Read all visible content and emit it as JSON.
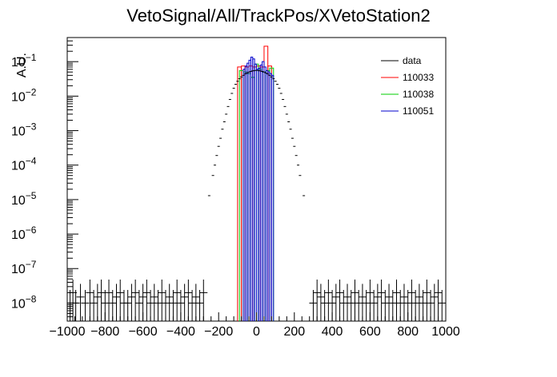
{
  "chart_data": {
    "type": "histogram",
    "title": "VetoSignal/All/TrackPos/XVetoStation2",
    "xlabel": "",
    "ylabel": "A.U.",
    "xlim": [
      -1000,
      1000
    ],
    "ylim": [
      3e-09,
      0.5
    ],
    "yscale": "log",
    "x_tick_labels": [
      "−1000",
      "−800",
      "−600",
      "−400",
      "−200",
      "0",
      "200",
      "400",
      "600",
      "800",
      "1000"
    ],
    "x_ticks": [
      -1000,
      -800,
      -600,
      -400,
      -200,
      0,
      200,
      400,
      600,
      800,
      1000
    ],
    "y_ticks": [
      1e-08,
      1e-07,
      1e-06,
      1e-05,
      0.0001,
      0.001,
      0.01,
      0.1
    ],
    "y_tick_labels": [
      {
        "base": "10",
        "exp": "−8"
      },
      {
        "base": "10",
        "exp": "−7"
      },
      {
        "base": "10",
        "exp": "−6"
      },
      {
        "base": "10",
        "exp": "−5"
      },
      {
        "base": "10",
        "exp": "−4"
      },
      {
        "base": "10",
        "exp": "−3"
      },
      {
        "base": "10",
        "exp": "−2"
      },
      {
        "base": "10",
        "exp": "−1"
      }
    ],
    "legend_position": "top-right",
    "series": [
      {
        "name": "data",
        "style": "points",
        "color": "#000000",
        "x": [
          -250,
          -230,
          -220,
          -210,
          -200,
          -190,
          -180,
          -170,
          -160,
          -150,
          -140,
          -130,
          -120,
          -110,
          -100,
          -90,
          -80,
          -70,
          -60,
          -50,
          -40,
          -30,
          -20,
          -10,
          0,
          10,
          20,
          30,
          40,
          50,
          60,
          70,
          80,
          90,
          100,
          110,
          120,
          130,
          140,
          150,
          160,
          170,
          180,
          190,
          200,
          210,
          220,
          230,
          250
        ],
        "y": [
          1.3e-05,
          5e-05,
          0.0001,
          0.00019,
          0.00035,
          0.0006,
          0.0011,
          0.0018,
          0.003,
          0.005,
          0.008,
          0.012,
          0.017,
          0.022,
          0.027,
          0.032,
          0.036,
          0.04,
          0.044,
          0.047,
          0.05,
          0.052,
          0.054,
          0.055,
          0.056,
          0.055,
          0.054,
          0.052,
          0.05,
          0.047,
          0.044,
          0.04,
          0.036,
          0.032,
          0.027,
          0.022,
          0.017,
          0.012,
          0.008,
          0.005,
          0.003,
          0.0018,
          0.0011,
          0.0006,
          0.00035,
          0.00019,
          0.0001,
          5e-05,
          1.3e-05
        ]
      },
      {
        "name": "110033",
        "style": "step",
        "color": "#ff0000",
        "edges": [
          -100,
          -80,
          -60,
          -40,
          -20,
          0,
          20,
          40,
          60,
          80
        ],
        "values": [
          0.07,
          0.075,
          0.07,
          0.075,
          0.07,
          0.075,
          0.07,
          0.28,
          0.075
        ]
      },
      {
        "name": "110038",
        "style": "step",
        "color": "#00cc00",
        "edges": [
          -90,
          -70,
          -50,
          -30,
          -10,
          10,
          30,
          50,
          70,
          90
        ],
        "values": [
          0.055,
          0.05,
          0.045,
          0.035,
          0.085,
          0.06,
          0.05,
          0.055,
          0.065
        ]
      },
      {
        "name": "110051",
        "style": "step",
        "color": "#0000cc",
        "edges": [
          -70,
          -60,
          -50,
          -40,
          -30,
          -20,
          -10,
          0,
          10,
          20,
          30,
          40,
          50,
          60,
          70,
          80,
          90
        ],
        "values": [
          0.06,
          0.075,
          0.09,
          0.11,
          0.135,
          0.12,
          0.085,
          0.06,
          0.065,
          0.08,
          0.1,
          0.07,
          0.055,
          0.05,
          0.045,
          0.04
        ]
      }
    ],
    "data_low_tail": {
      "x": [
        -985,
        -970,
        -955,
        -930,
        -905,
        -880,
        -860,
        -840,
        -820,
        -800,
        -780,
        -760,
        -740,
        -720,
        -700,
        -680,
        -660,
        -640,
        -620,
        -600,
        -580,
        -560,
        -540,
        -520,
        -500,
        -480,
        -460,
        -440,
        -420,
        -400,
        -380,
        -360,
        -340,
        -320,
        -300,
        -280,
        300,
        320,
        340,
        360,
        380,
        400,
        420,
        440,
        460,
        480,
        500,
        520,
        540,
        560,
        580,
        600,
        620,
        640,
        660,
        680,
        700,
        720,
        740,
        760,
        780,
        800,
        820,
        840,
        860,
        880,
        900,
        920,
        940,
        960,
        980
      ],
      "y": [
        1e-08,
        2e-08,
        1e-08,
        1.5e-08,
        1e-08,
        2e-08,
        1e-08,
        1.5e-08,
        2e-08,
        1e-08,
        2e-08,
        1e-08,
        1.5e-08,
        2e-08,
        1e-08,
        1e-08,
        1.5e-08,
        2e-08,
        1e-08,
        1.5e-08,
        2e-08,
        1e-08,
        1.5e-08,
        1e-08,
        2e-08,
        1e-08,
        1.5e-08,
        1e-08,
        2e-08,
        1e-08,
        1.5e-08,
        2e-08,
        1e-08,
        1.5e-08,
        1e-08,
        2e-08,
        1e-08,
        2e-08,
        1.5e-08,
        1e-08,
        2e-08,
        1e-08,
        1.5e-08,
        2e-08,
        1e-08,
        1.5e-08,
        1e-08,
        2e-08,
        1e-08,
        1.5e-08,
        1e-08,
        2e-08,
        1e-08,
        1.5e-08,
        2e-08,
        1e-08,
        1.5e-08,
        1e-08,
        2e-08,
        1e-08,
        1.5e-08,
        1e-08,
        2e-08,
        1e-08,
        1.5e-08,
        1e-08,
        2e-08,
        1e-08,
        1.5e-08,
        2e-08,
        1e-08
      ]
    }
  }
}
